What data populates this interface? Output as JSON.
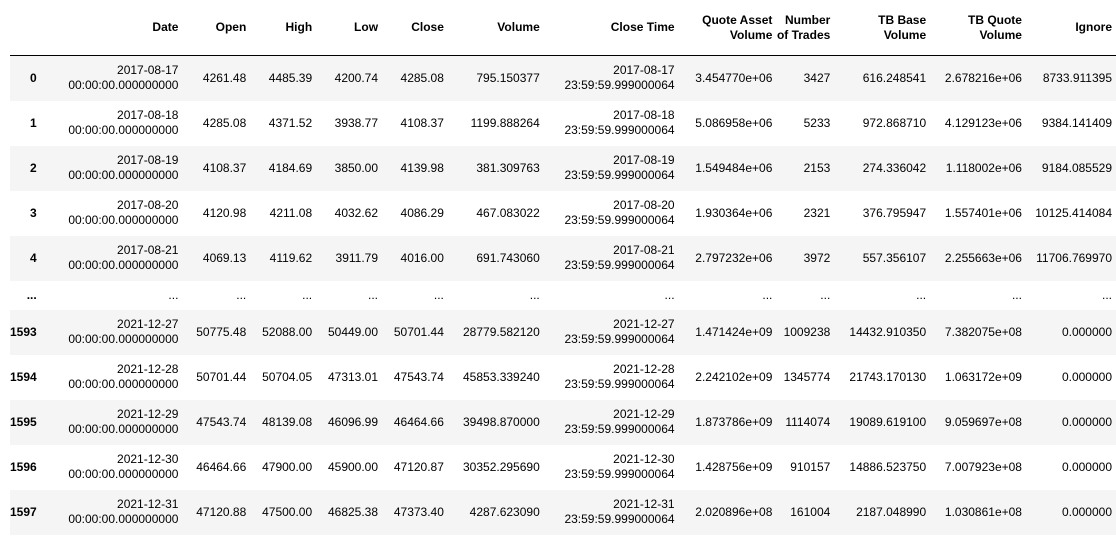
{
  "table": {
    "columns": [
      "",
      "Date",
      "Open",
      "High",
      "Low",
      "Close",
      "Volume",
      "Close Time",
      "Quote Asset Volume",
      "Number of Trades",
      "TB Base Volume",
      "TB Quote Volume",
      "Ignore"
    ],
    "rows": [
      {
        "index": "0",
        "date": [
          "2017-08-17",
          "00:00:00.000000000"
        ],
        "open": "4261.48",
        "high": "4485.39",
        "low": "4200.74",
        "close": "4285.08",
        "volume": "795.150377",
        "close_time": [
          "2017-08-17",
          "23:59:59.999000064"
        ],
        "qav": "3.454770e+06",
        "trades": "3427",
        "tbb": "616.248541",
        "tbq": "2.678216e+06",
        "ignore": "8733.911395"
      },
      {
        "index": "1",
        "date": [
          "2017-08-18",
          "00:00:00.000000000"
        ],
        "open": "4285.08",
        "high": "4371.52",
        "low": "3938.77",
        "close": "4108.37",
        "volume": "1199.888264",
        "close_time": [
          "2017-08-18",
          "23:59:59.999000064"
        ],
        "qav": "5.086958e+06",
        "trades": "5233",
        "tbb": "972.868710",
        "tbq": "4.129123e+06",
        "ignore": "9384.141409"
      },
      {
        "index": "2",
        "date": [
          "2017-08-19",
          "00:00:00.000000000"
        ],
        "open": "4108.37",
        "high": "4184.69",
        "low": "3850.00",
        "close": "4139.98",
        "volume": "381.309763",
        "close_time": [
          "2017-08-19",
          "23:59:59.999000064"
        ],
        "qav": "1.549484e+06",
        "trades": "2153",
        "tbb": "274.336042",
        "tbq": "1.118002e+06",
        "ignore": "9184.085529"
      },
      {
        "index": "3",
        "date": [
          "2017-08-20",
          "00:00:00.000000000"
        ],
        "open": "4120.98",
        "high": "4211.08",
        "low": "4032.62",
        "close": "4086.29",
        "volume": "467.083022",
        "close_time": [
          "2017-08-20",
          "23:59:59.999000064"
        ],
        "qav": "1.930364e+06",
        "trades": "2321",
        "tbb": "376.795947",
        "tbq": "1.557401e+06",
        "ignore": "10125.414084"
      },
      {
        "index": "4",
        "date": [
          "2017-08-21",
          "00:00:00.000000000"
        ],
        "open": "4069.13",
        "high": "4119.62",
        "low": "3911.79",
        "close": "4016.00",
        "volume": "691.743060",
        "close_time": [
          "2017-08-21",
          "23:59:59.999000064"
        ],
        "qav": "2.797232e+06",
        "trades": "3972",
        "tbb": "557.356107",
        "tbq": "2.255663e+06",
        "ignore": "11706.769970"
      },
      {
        "index": "...",
        "date": [
          "..."
        ],
        "open": "...",
        "high": "...",
        "low": "...",
        "close": "...",
        "volume": "...",
        "close_time": [
          "..."
        ],
        "qav": "...",
        "trades": "...",
        "tbb": "...",
        "tbq": "...",
        "ignore": "..."
      },
      {
        "index": "1593",
        "date": [
          "2021-12-27",
          "00:00:00.000000000"
        ],
        "open": "50775.48",
        "high": "52088.00",
        "low": "50449.00",
        "close": "50701.44",
        "volume": "28779.582120",
        "close_time": [
          "2021-12-27",
          "23:59:59.999000064"
        ],
        "qav": "1.471424e+09",
        "trades": "1009238",
        "tbb": "14432.910350",
        "tbq": "7.382075e+08",
        "ignore": "0.000000"
      },
      {
        "index": "1594",
        "date": [
          "2021-12-28",
          "00:00:00.000000000"
        ],
        "open": "50701.44",
        "high": "50704.05",
        "low": "47313.01",
        "close": "47543.74",
        "volume": "45853.339240",
        "close_time": [
          "2021-12-28",
          "23:59:59.999000064"
        ],
        "qav": "2.242102e+09",
        "trades": "1345774",
        "tbb": "21743.170130",
        "tbq": "1.063172e+09",
        "ignore": "0.000000"
      },
      {
        "index": "1595",
        "date": [
          "2021-12-29",
          "00:00:00.000000000"
        ],
        "open": "47543.74",
        "high": "48139.08",
        "low": "46096.99",
        "close": "46464.66",
        "volume": "39498.870000",
        "close_time": [
          "2021-12-29",
          "23:59:59.999000064"
        ],
        "qav": "1.873786e+09",
        "trades": "1114074",
        "tbb": "19089.619100",
        "tbq": "9.059697e+08",
        "ignore": "0.000000"
      },
      {
        "index": "1596",
        "date": [
          "2021-12-30",
          "00:00:00.000000000"
        ],
        "open": "46464.66",
        "high": "47900.00",
        "low": "45900.00",
        "close": "47120.87",
        "volume": "30352.295690",
        "close_time": [
          "2021-12-30",
          "23:59:59.999000064"
        ],
        "qav": "1.428756e+09",
        "trades": "910157",
        "tbb": "14886.523750",
        "tbq": "7.007923e+08",
        "ignore": "0.000000"
      },
      {
        "index": "1597",
        "date": [
          "2021-12-31",
          "00:00:00.000000000"
        ],
        "open": "47120.88",
        "high": "47500.00",
        "low": "46825.38",
        "close": "47373.40",
        "volume": "4287.623090",
        "close_time": [
          "2021-12-31",
          "23:59:59.999000064"
        ],
        "qav": "2.020896e+08",
        "trades": "161004",
        "tbb": "2187.048990",
        "tbq": "1.030861e+08",
        "ignore": "0.000000"
      }
    ]
  }
}
